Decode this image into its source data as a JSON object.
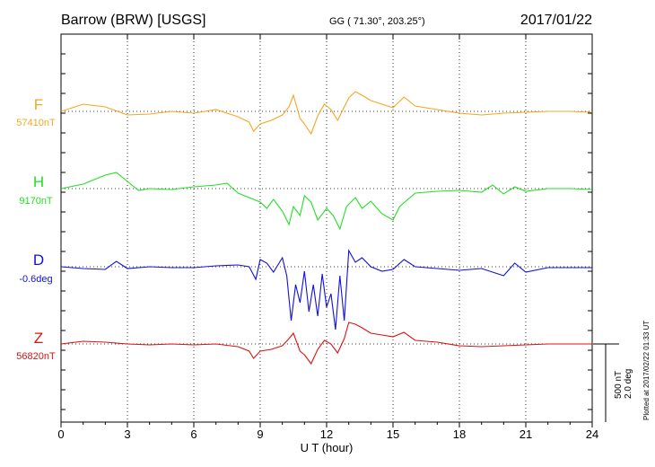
{
  "header": {
    "station": "Barrow (BRW)  [USGS]",
    "coords": "GG ( 71.30°, 203.25°)",
    "date": "2017/01/22"
  },
  "chart_data": {
    "type": "line",
    "xlabel": "U T (hour)",
    "xlim": [
      0,
      24
    ],
    "xticks": [
      "0",
      "3",
      "6",
      "9",
      "12",
      "15",
      "18",
      "21",
      "24"
    ],
    "scale_label": [
      "500 nT",
      "2.0 deg"
    ],
    "plotted_note": "Plotted at 2017/02/22 01:33 UT",
    "series": [
      {
        "name": "F",
        "baseline": "57410nT",
        "color": "#f5a623",
        "x": [
          0,
          1,
          2,
          3,
          4,
          5,
          6,
          7,
          8,
          8.5,
          8.7,
          9,
          9.5,
          10,
          10.3,
          10.5,
          10.8,
          11,
          11.3,
          11.6,
          11.9,
          12.2,
          12.5,
          12.8,
          13,
          13.3,
          13.6,
          14,
          14.5,
          15,
          15.5,
          16,
          17,
          18,
          19,
          20,
          21,
          22,
          23,
          24
        ],
        "y": [
          0,
          8,
          5,
          -4,
          -3,
          0,
          -2,
          2,
          -6,
          -12,
          -22,
          -14,
          -10,
          -4,
          5,
          18,
          -8,
          -14,
          -25,
          -5,
          8,
          2,
          -10,
          5,
          15,
          22,
          18,
          12,
          8,
          4,
          16,
          6,
          2,
          -2,
          -4,
          -2,
          -1,
          0,
          0,
          -1
        ]
      },
      {
        "name": "H",
        "baseline": "9170nT",
        "color": "#22e022",
        "x": [
          0,
          1,
          2,
          2.5,
          3,
          3.5,
          4,
          5,
          6,
          7,
          7.5,
          8,
          8.5,
          9,
          9.3,
          9.6,
          10,
          10.3,
          10.5,
          10.8,
          11,
          11.3,
          11.6,
          12,
          12.3,
          12.6,
          12.9,
          13.3,
          13.6,
          14,
          14.5,
          15,
          15.3,
          16,
          17,
          18,
          19,
          19.5,
          20,
          20.5,
          21,
          22,
          23,
          24
        ],
        "y": [
          0,
          5,
          15,
          18,
          8,
          -2,
          0,
          -1,
          2,
          4,
          6,
          -5,
          -10,
          -15,
          -22,
          -12,
          -25,
          -40,
          -20,
          -30,
          -8,
          -15,
          -35,
          -22,
          -30,
          -45,
          -20,
          -10,
          -22,
          -14,
          -28,
          -35,
          -20,
          -5,
          -3,
          -2,
          -4,
          4,
          -6,
          2,
          -3,
          0,
          0,
          -1
        ]
      },
      {
        "name": "D",
        "baseline": "-0.6deg",
        "color": "#1010e0",
        "x": [
          0,
          1,
          2,
          2.5,
          3,
          4,
          5,
          6,
          7,
          8,
          8.5,
          8.8,
          9,
          9.3,
          9.6,
          10,
          10.2,
          10.4,
          10.6,
          10.8,
          11,
          11.2,
          11.4,
          11.6,
          11.8,
          12,
          12.2,
          12.4,
          12.6,
          12.8,
          13,
          13.3,
          13.6,
          14,
          14.5,
          15,
          15.5,
          16,
          17,
          18,
          19,
          19.5,
          20,
          20.5,
          21,
          22,
          23,
          24
        ],
        "y": [
          0,
          -2,
          -3,
          6,
          -2,
          0,
          -1,
          -1,
          1,
          2,
          0,
          -14,
          8,
          4,
          -6,
          10,
          -10,
          -60,
          -20,
          -40,
          -5,
          -50,
          -20,
          -55,
          -8,
          -45,
          -30,
          -70,
          -10,
          -60,
          18,
          5,
          10,
          0,
          -5,
          -3,
          8,
          0,
          -2,
          -4,
          -2,
          -6,
          -10,
          4,
          -6,
          -1,
          -1,
          -1
        ]
      },
      {
        "name": "Z",
        "baseline": "56820nT",
        "color": "#e01010",
        "x": [
          0,
          1,
          2,
          3,
          4,
          5,
          6,
          7,
          8,
          8.5,
          8.7,
          9,
          9.5,
          10,
          10.3,
          10.5,
          10.8,
          11,
          11.3,
          11.6,
          11.9,
          12.2,
          12.5,
          12.8,
          13,
          13.3,
          13.6,
          14,
          14.5,
          15,
          15.5,
          16,
          17,
          18,
          19,
          20,
          21,
          22,
          23,
          24
        ],
        "y": [
          0,
          3,
          2,
          0,
          -1,
          0,
          -1,
          0,
          -3,
          -8,
          -16,
          -8,
          -6,
          -2,
          6,
          12,
          -8,
          -12,
          -22,
          -6,
          4,
          0,
          -10,
          6,
          24,
          22,
          18,
          12,
          10,
          8,
          13,
          4,
          2,
          -2,
          -3,
          -2,
          -1,
          0,
          0,
          0
        ]
      }
    ],
    "grid": "dotted vertical at each tick; dotted horizontal baselines"
  }
}
